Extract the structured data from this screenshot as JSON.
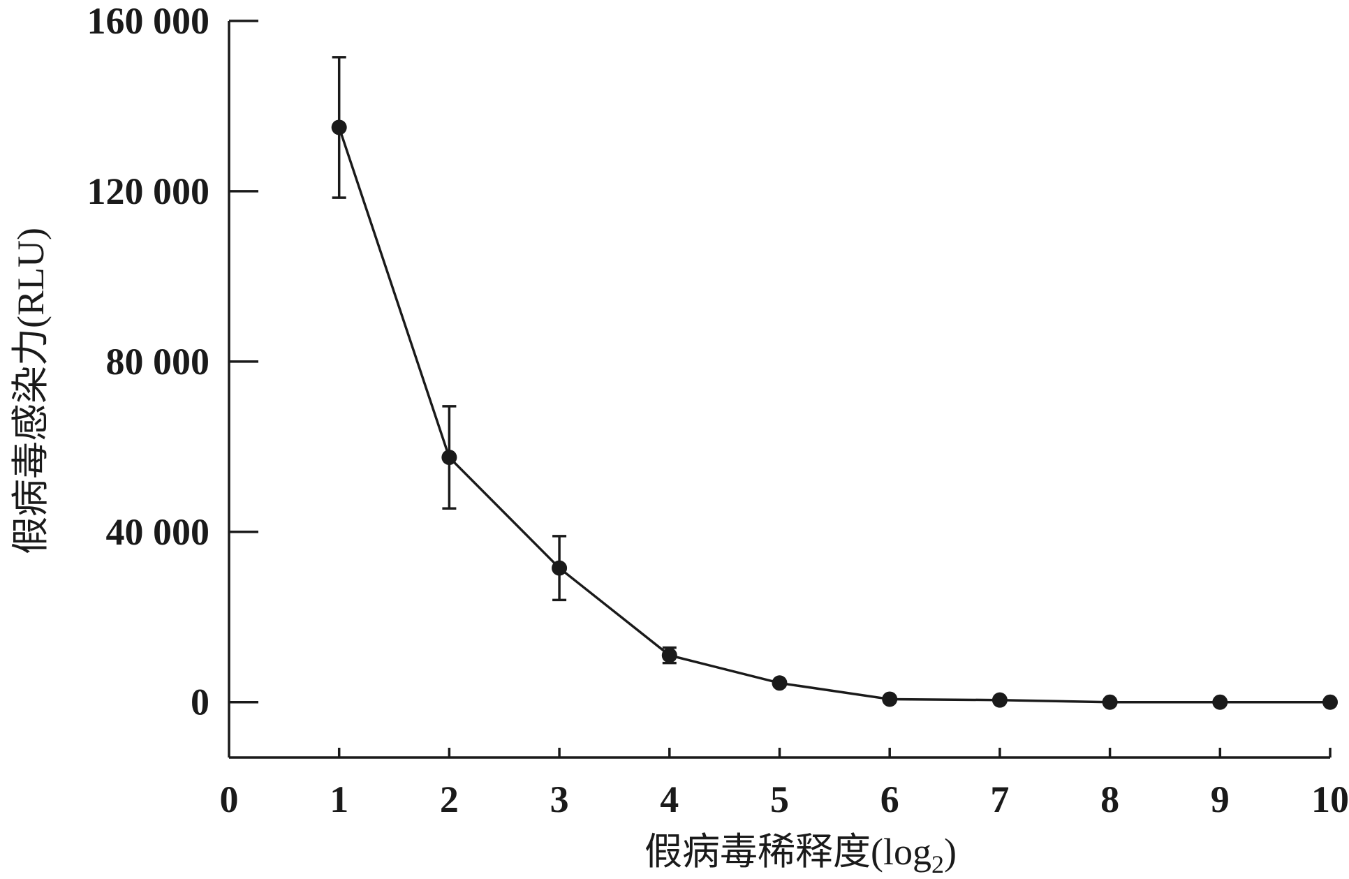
{
  "chart_data": {
    "type": "line",
    "title": "",
    "xlabel": "假病毒稀释度(log",
    "xlabel_subscript": "2",
    "xlabel_suffix": ")",
    "ylabel": "假病毒感染力(RLU)",
    "xlim": [
      0,
      10
    ],
    "ylim": [
      -13000,
      160000
    ],
    "x_ticks": [
      0,
      1,
      2,
      3,
      4,
      5,
      6,
      7,
      8,
      9,
      10
    ],
    "x_tick_labels": [
      "0",
      "1",
      "2",
      "3",
      "4",
      "5",
      "6",
      "7",
      "8",
      "9",
      "10"
    ],
    "y_ticks": [
      0,
      40000,
      80000,
      120000,
      160000
    ],
    "y_tick_labels": [
      "0",
      "40 000",
      "80 000",
      "120 000",
      "160 000"
    ],
    "grid": false,
    "legend": "none",
    "colors": {
      "line": "#1a1a1a",
      "marker": "#1a1a1a",
      "text": "#1a1a1a"
    },
    "series": [
      {
        "x": [
          1,
          2,
          3,
          4,
          5,
          6,
          7,
          8,
          9,
          10
        ],
        "values": [
          135000,
          57500,
          31500,
          11000,
          4500,
          700,
          500,
          0,
          0,
          0
        ],
        "error": [
          16500,
          12000,
          7500,
          1800,
          0,
          0,
          0,
          0,
          0,
          0
        ]
      }
    ]
  }
}
